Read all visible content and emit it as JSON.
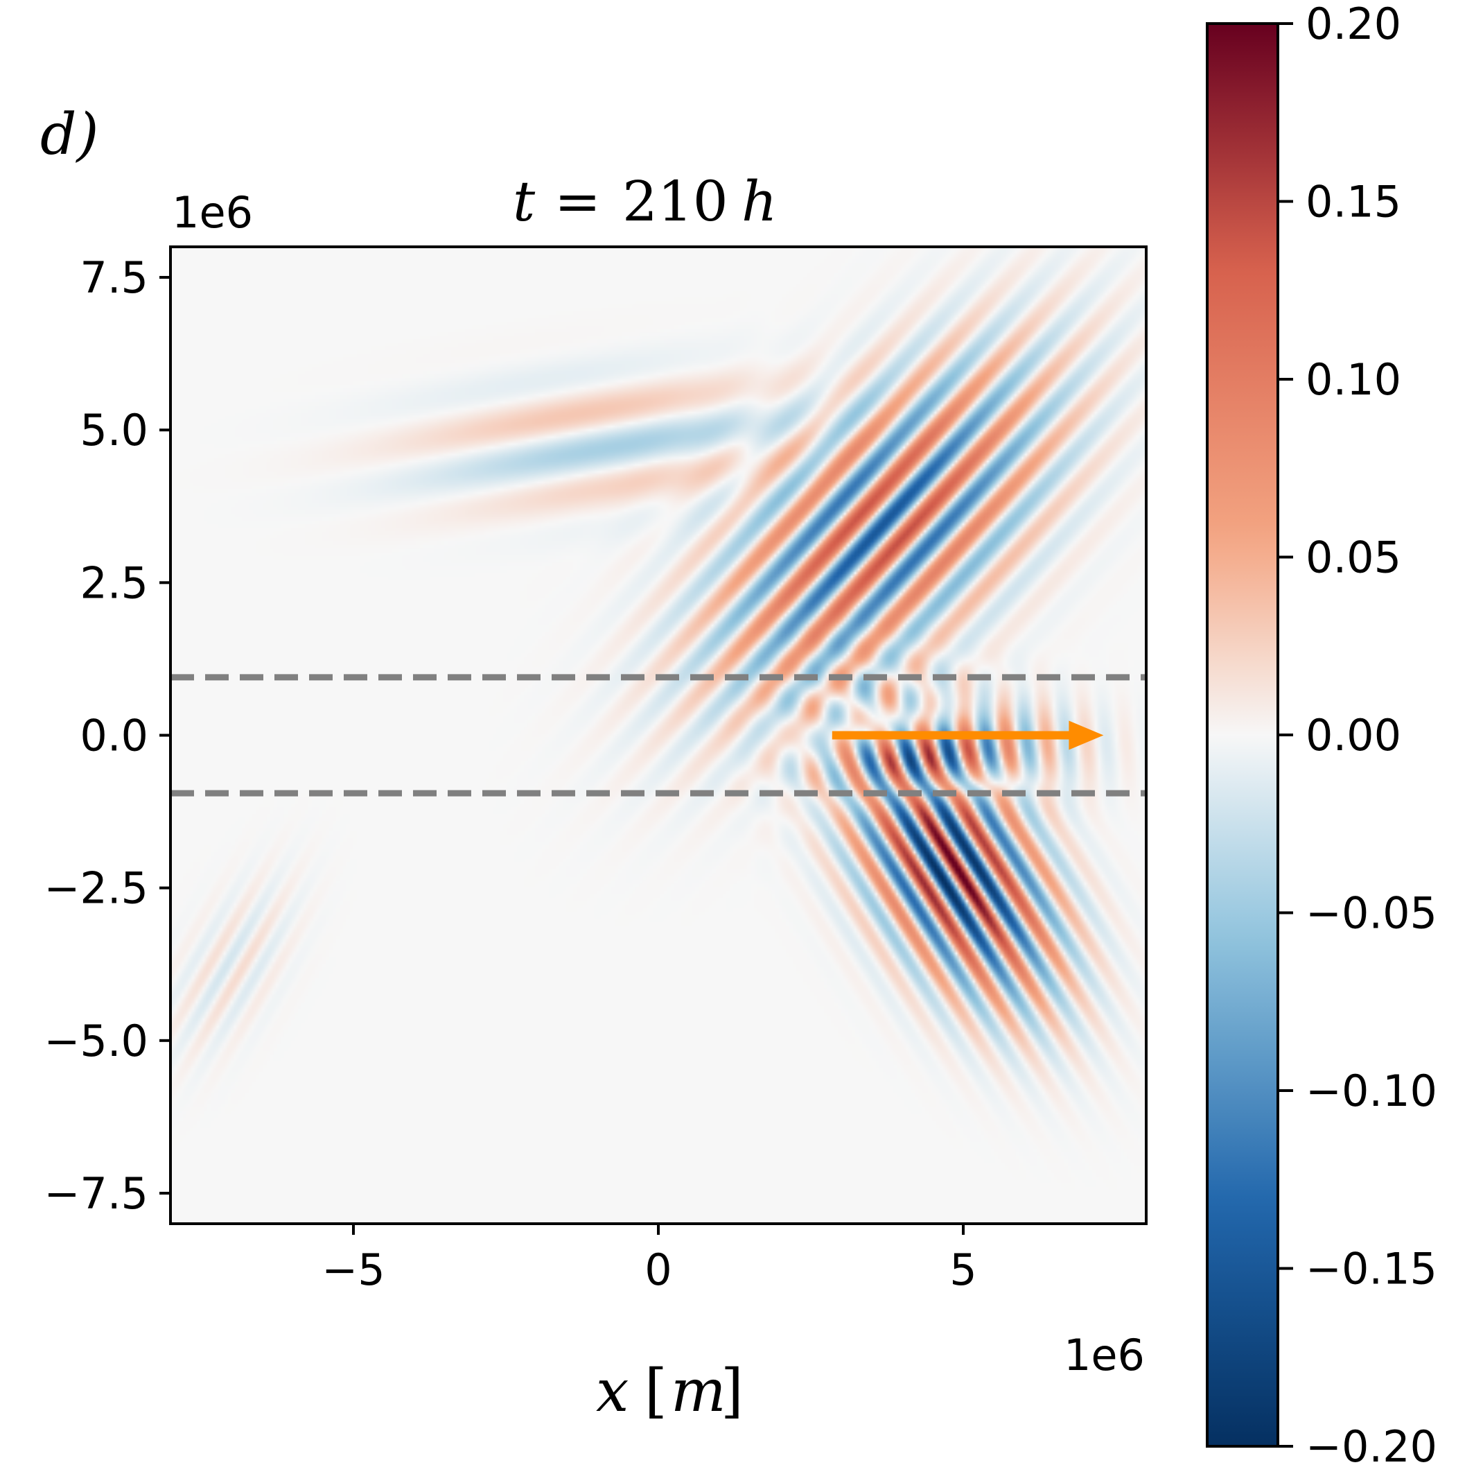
{
  "panel_label": "d)",
  "chart_data": {
    "type": "heatmap",
    "title": "t = 210 h",
    "title_parts": {
      "var": "t",
      "eq": "=",
      "value": "210",
      "unit": "h"
    },
    "xlabel": "x [m]",
    "xlabel_parts": {
      "var": "x",
      "lbr": "[",
      "unit": "m",
      "rbr": "]"
    },
    "ylabel": "",
    "x_offset_text": "1e6",
    "y_offset_text": "1e6",
    "xlim": [
      -8,
      8
    ],
    "ylim": [
      -8,
      8
    ],
    "x_ticks": [
      -5,
      0,
      5
    ],
    "x_tick_labels": [
      "−5",
      "0",
      "5"
    ],
    "y_ticks": [
      7.5,
      5.0,
      2.5,
      0.0,
      -2.5,
      -5.0,
      -7.5
    ],
    "y_tick_labels": [
      "7.5",
      "5.0",
      "2.5",
      "0.0",
      "−2.5",
      "−5.0",
      "−7.5"
    ],
    "colormap": "RdBu_r",
    "colorbar": {
      "vmin": -0.2,
      "vmax": 0.2,
      "ticks": [
        0.2,
        0.15,
        0.1,
        0.05,
        0.0,
        -0.05,
        -0.1,
        -0.15,
        -0.2
      ],
      "tick_labels": [
        "0.20",
        "0.15",
        "0.10",
        "0.05",
        "0.00",
        "−0.05",
        "−0.10",
        "−0.15",
        "−0.20"
      ],
      "colors": {
        "neg_max": "#053061",
        "neg_2": "#2166ac",
        "neg_1": "#92c5de",
        "zero": "#f7f7f7",
        "pos_1": "#f4a582",
        "pos_2": "#d6604d",
        "pos_max": "#67001f"
      }
    },
    "guide_lines": [
      {
        "y": 0.95,
        "style": "dashed",
        "color": "#808080"
      },
      {
        "y": -0.95,
        "style": "dashed",
        "color": "#808080"
      }
    ],
    "arrow": {
      "x_start": 2.85,
      "x_end": 7.3,
      "y": 0.0,
      "color": "#ff8c00"
    },
    "wave_packets": [
      {
        "name": "upper packet",
        "center_x": 3.7,
        "center_y": 3.4,
        "sigma_along": 2.3,
        "sigma_across": 1.15,
        "axis_angle_deg": 45,
        "crest_angle_deg": 138,
        "wavelength": 0.78,
        "amplitude": 0.15,
        "phase": 0.3
      },
      {
        "name": "lower packet",
        "center_x": 4.85,
        "center_y": -2.2,
        "sigma_along": 1.6,
        "sigma_across": 0.85,
        "axis_angle_deg": -58,
        "crest_angle_deg": 32,
        "wavelength": 0.6,
        "amplitude": 0.21,
        "phase": 0.0
      },
      {
        "name": "equatorial band",
        "center_x": 4.8,
        "center_y": -0.2,
        "sigma_along": 1.3,
        "sigma_across": 0.55,
        "axis_angle_deg": 0,
        "crest_angle_deg": 5,
        "wavelength": 0.65,
        "amplitude": 0.1,
        "phase": 1.5
      },
      {
        "name": "upper-left faint trail",
        "center_x": -0.8,
        "center_y": 4.8,
        "sigma_along": 2.2,
        "sigma_across": 0.7,
        "axis_angle_deg": 5,
        "crest_angle_deg": 100,
        "wavelength": 1.4,
        "amplitude": 0.045,
        "phase": 0.6
      },
      {
        "name": "lower-left faint trail",
        "center_x": -7.0,
        "center_y": -3.8,
        "sigma_along": 1.1,
        "sigma_across": 0.5,
        "axis_angle_deg": 60,
        "crest_angle_deg": 150,
        "wavelength": 0.5,
        "amplitude": 0.02,
        "phase": 0.0
      }
    ]
  }
}
